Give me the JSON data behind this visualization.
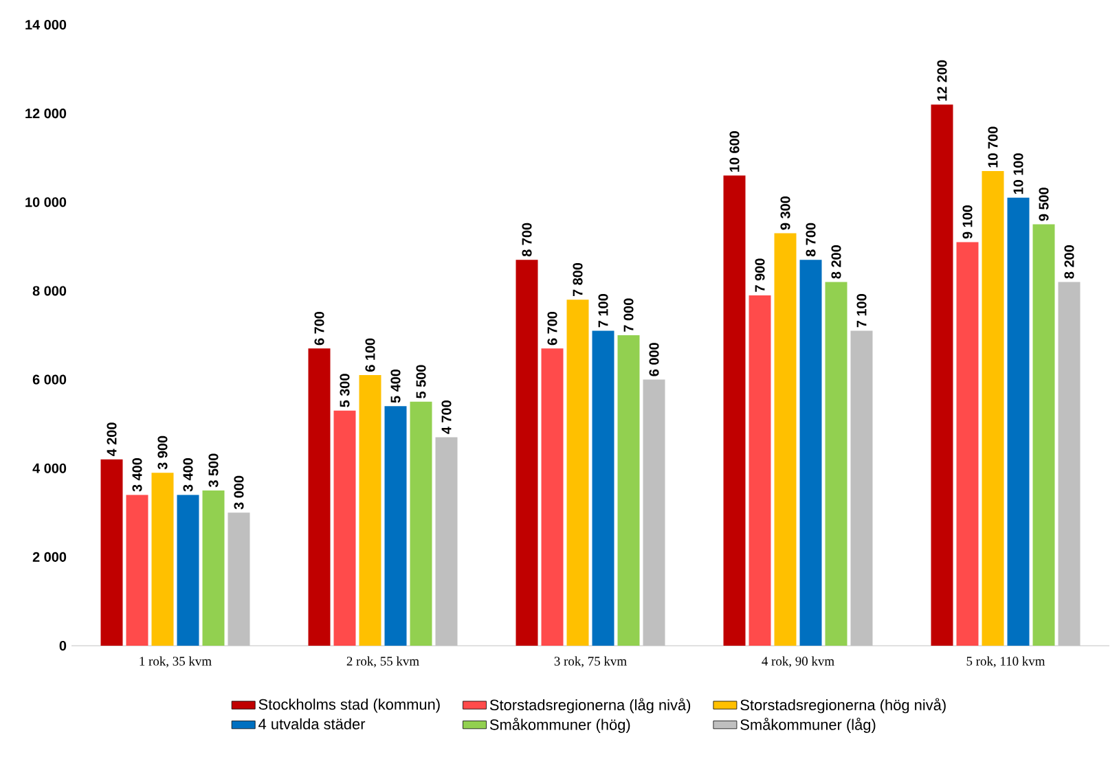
{
  "chart_data": {
    "type": "bar",
    "categories": [
      "1 rok, 35 kvm",
      "2 rok, 55 kvm",
      "3 rok, 75 kvm",
      "4 rok, 90 kvm",
      "5 rok, 110 kvm"
    ],
    "series": [
      {
        "name": "Stockholms stad (kommun)",
        "color": "#c00000",
        "values": [
          4200,
          6700,
          8700,
          10600,
          12200
        ],
        "value_labels": [
          "4 200",
          "6 700",
          "8 700",
          "10 600",
          "12 200"
        ]
      },
      {
        "name": "Storstadsregionerna (låg nivå)",
        "color": "#ff4b4b",
        "values": [
          3400,
          5300,
          6700,
          7900,
          9100
        ],
        "value_labels": [
          "3 400",
          "5 300",
          "6 700",
          "7 900",
          "9 100"
        ]
      },
      {
        "name": "Storstadsregionerna (hög nivå)",
        "color": "#ffc000",
        "values": [
          3900,
          6100,
          7800,
          9300,
          10700
        ],
        "value_labels": [
          "3 900",
          "6 100",
          "7 800",
          "9 300",
          "10 700"
        ]
      },
      {
        "name": "4 utvalda städer",
        "color": "#0070c0",
        "values": [
          3400,
          5400,
          7100,
          8700,
          10100
        ],
        "value_labels": [
          "3 400",
          "5 400",
          "7 100",
          "8 700",
          "10 100"
        ]
      },
      {
        "name": "Småkommuner (hög)",
        "color": "#92d050",
        "values": [
          3500,
          5500,
          7000,
          8200,
          9500
        ],
        "value_labels": [
          "3 500",
          "5 500",
          "7 000",
          "8 200",
          "9 500"
        ]
      },
      {
        "name": "Småkommuner (låg)",
        "color": "#bfbfbf",
        "values": [
          3000,
          4700,
          6000,
          7100,
          8200
        ],
        "value_labels": [
          "3 000",
          "4 700",
          "6 000",
          "7 100",
          "8 200"
        ]
      }
    ],
    "ylim": [
      0,
      14000
    ],
    "yticks": [
      {
        "value": 0,
        "label": "0"
      },
      {
        "value": 2000,
        "label": "2 000"
      },
      {
        "value": 4000,
        "label": "4 000"
      },
      {
        "value": 6000,
        "label": "6 000"
      },
      {
        "value": 8000,
        "label": "8 000"
      },
      {
        "value": 10000,
        "label": "10 000"
      },
      {
        "value": 12000,
        "label": "12 000"
      },
      {
        "value": 14000,
        "label": "14 000"
      }
    ],
    "legend": "bottom"
  }
}
